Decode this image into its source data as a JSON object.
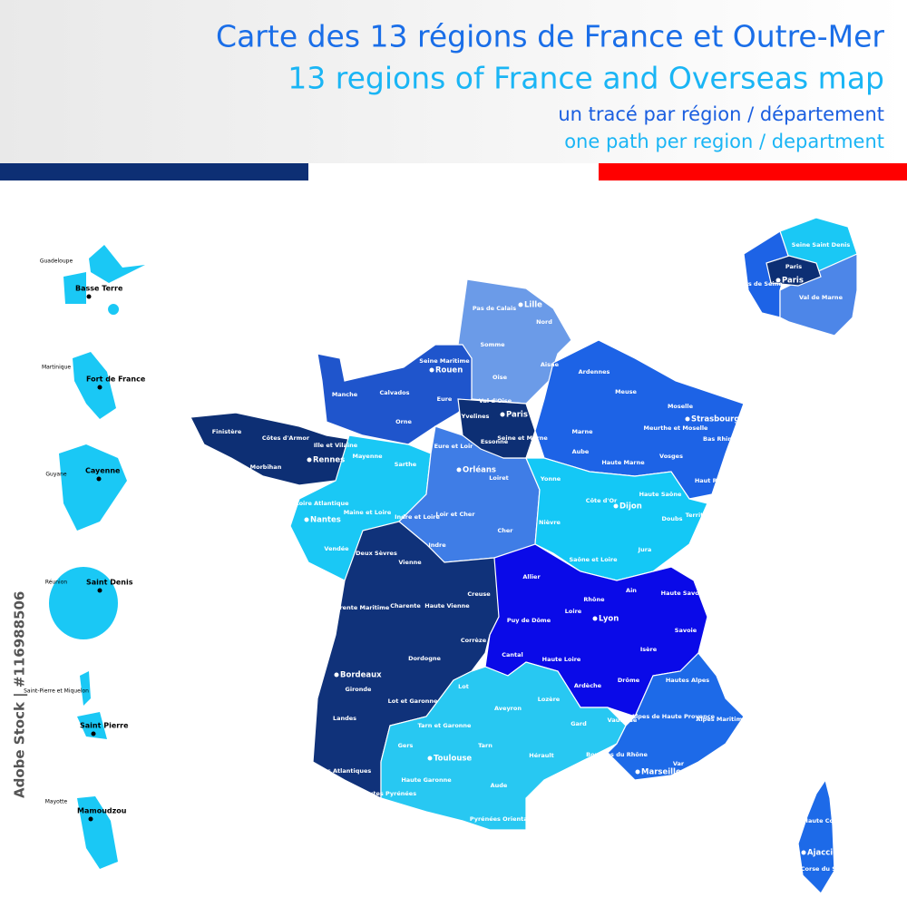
{
  "header": {
    "title_fr": "Carte des 13 régions de France et Outre-Mer",
    "title_en": "13 regions of France and Overseas map",
    "subtitle_fr": "un tracé par région / département",
    "subtitle_en": "one path per region / department"
  },
  "overseas": [
    {
      "name": "Guadeloupe",
      "city": "Basse Terre"
    },
    {
      "name": "Martinique",
      "city": "Fort de France"
    },
    {
      "name": "Guyane",
      "city": "Cayenne"
    },
    {
      "name": "Réunion",
      "city": "Saint Denis"
    },
    {
      "name": "Saint-Pierre et Miquelon",
      "city": "Saint Pierre"
    },
    {
      "name": "Mayotte",
      "city": "Mamoudzou"
    }
  ],
  "departments": [
    "Pas de Calais",
    "Nord",
    "Somme",
    "Aisne",
    "Oise",
    "Seine Maritime",
    "Manche",
    "Calvados",
    "Eure",
    "Orne",
    "Finistère",
    "Côtes d'Armor",
    "Ille et Vilaine",
    "Morbihan",
    "Mayenne",
    "Sarthe",
    "Loire Atlantique",
    "Maine et Loire",
    "Vendée",
    "Val d'Oise",
    "Yvelines",
    "Essonne",
    "Seine et Marne",
    "Eure et Loir",
    "Loiret",
    "Loir et Cher",
    "Indre et Loire",
    "Indre",
    "Cher",
    "Ardennes",
    "Marne",
    "Meuse",
    "Moselle",
    "Meurthe et Moselle",
    "Bas Rhin",
    "Aube",
    "Haute Marne",
    "Vosges",
    "Haut Rhin",
    "Yonne",
    "Côte d'Or",
    "Haute Saône",
    "Nièvre",
    "Doubs",
    "Saône et Loire",
    "Jura",
    "Territoire de Belfort",
    "Deux Sèvres",
    "Vienne",
    "Charente Maritime",
    "Charente",
    "Haute Vienne",
    "Creuse",
    "Corrèze",
    "Dordogne",
    "Gironde",
    "Lot et Garonne",
    "Landes",
    "Pyrénées Atlantiques",
    "Allier",
    "Puy de Dôme",
    "Loire",
    "Rhône",
    "Ain",
    "Haute Savoie",
    "Savoie",
    "Cantal",
    "Haute Loire",
    "Isère",
    "Ardèche",
    "Drôme",
    "Lot",
    "Aveyron",
    "Lozère",
    "Gard",
    "Tarn et Garonne",
    "Gers",
    "Tarn",
    "Hérault",
    "Haute Garonne",
    "Hautes Pyrénées",
    "Aude",
    "Pyrénées Orientales",
    "Hautes Alpes",
    "Vaucluse",
    "Alpes de Haute Provence",
    "Alpes Maritimes",
    "Bouches du Rhône",
    "Var",
    "Haute Corse",
    "Corse du Sud"
  ],
  "cities": [
    "Lille",
    "Rouen",
    "Paris",
    "Strasbourg",
    "Rennes",
    "Orléans",
    "Dijon",
    "Nantes",
    "Bordeaux",
    "Lyon",
    "Toulouse",
    "Marseille",
    "Ajaccio"
  ],
  "inset_paris": {
    "departments": [
      "Seine Saint Denis",
      "Paris",
      "Hauts de Seine",
      "Val de Marne"
    ],
    "city": "Paris"
  },
  "watermark": "Adobe Stock | #116988506"
}
